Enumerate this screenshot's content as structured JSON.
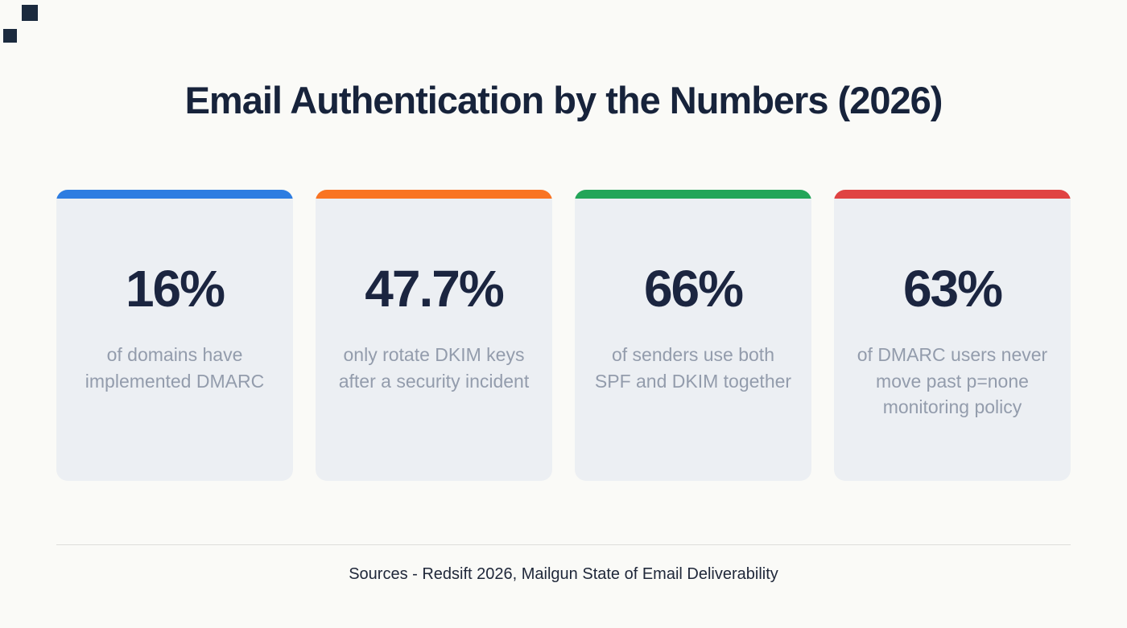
{
  "page": {
    "title": "Email Authentication by the Numbers (2026)",
    "footer": "Sources - Redsift 2026, Mailgun State of Email Deliverability"
  },
  "colors": {
    "bg": "#FAFAF7",
    "card": "#ECEFF3",
    "heading": "#17233B",
    "number": "#1B2540",
    "desc": "#939CAC",
    "footer": "#20283A",
    "divider": "#DEDEDA",
    "deco": "#1B2A3E"
  },
  "cards": [
    {
      "value": "16%",
      "description": "of domains have implemented DMARC",
      "accent_color": "#2E7DE1"
    },
    {
      "value": "47.7%",
      "description": "only rotate DKIM keys after a security incident",
      "accent_color": "#F97423"
    },
    {
      "value": "66%",
      "description": "of senders use both SPF and DKIM together",
      "accent_color": "#23A559"
    },
    {
      "value": "63%",
      "description": "of DMARC users never move past p=none monitoring policy",
      "accent_color": "#E04343"
    }
  ],
  "chart_data": {
    "type": "table",
    "title": "Email Authentication by the Numbers (2026)",
    "categories": [
      "of domains have implemented DMARC",
      "only rotate DKIM keys after a security incident",
      "of senders use both SPF and DKIM together",
      "of DMARC users never move past p=none monitoring policy"
    ],
    "values": [
      16,
      47.7,
      66,
      63
    ],
    "unit": "%",
    "legend": false,
    "source": "Sources - Redsift 2026, Mailgun State of Email Deliverability",
    "accent_colors": [
      "#2E7DE1",
      "#F97423",
      "#23A559",
      "#E04343"
    ]
  }
}
